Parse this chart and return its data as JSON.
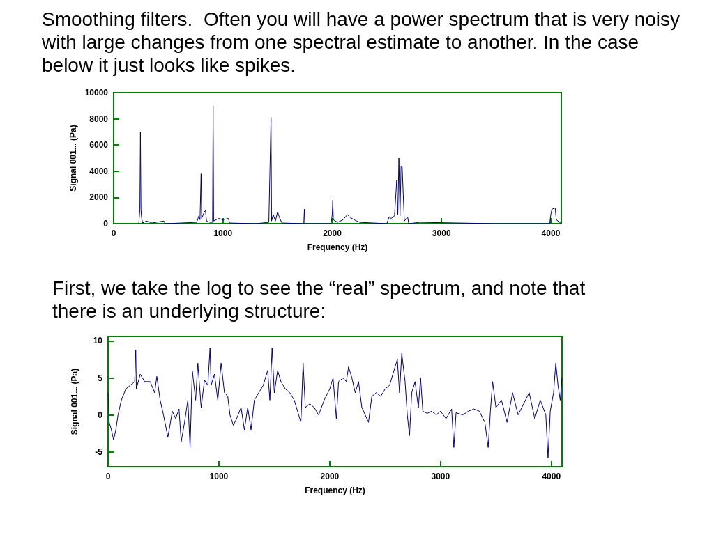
{
  "chart_data": [
    {
      "type": "line",
      "title": "Smoothing filters.  Often you will have a power spectrum that is very noisy with large changes from one spectral estimate to another. In the case below it just looks like spikes.",
      "xlabel": "Frequency (Hz)",
      "ylabel": "Signal 001... (Pa)",
      "xlim": [
        0,
        4096
      ],
      "ylim": [
        0,
        10000
      ],
      "xticks": [
        0,
        1000,
        2000,
        3000,
        4000
      ],
      "yticks": [
        0,
        2000,
        4000,
        6000,
        8000,
        10000
      ],
      "grid": false,
      "marker": "none",
      "x": [
        230,
        240,
        245,
        250,
        255,
        265,
        300,
        350,
        460,
        470,
        760,
        780,
        790,
        800,
        805,
        830,
        840,
        850,
        880,
        905,
        910,
        915,
        960,
        1000,
        1050,
        1060,
        1300,
        1420,
        1440,
        1445,
        1460,
        1480,
        1500,
        1520,
        1540,
        1740,
        1745,
        1750,
        1990,
        2000,
        2005,
        2010,
        2050,
        2100,
        2140,
        2160,
        2200,
        2250,
        2500,
        2520,
        2540,
        2570,
        2590,
        2600,
        2610,
        2620,
        2630,
        2640,
        2650,
        2660,
        2690,
        2700,
        2800,
        3500,
        3990,
        4000,
        4010,
        4040,
        4050,
        4096
      ],
      "series": [
        {
          "color": "#000080",
          "values": [
            0,
            1100,
            7000,
            1100,
            500,
            50,
            200,
            50,
            200,
            0,
            100,
            600,
            300,
            3800,
            400,
            900,
            1000,
            200,
            100,
            100,
            9000,
            200,
            400,
            300,
            400,
            50,
            0,
            100,
            8100,
            200,
            700,
            200,
            900,
            400,
            50,
            0,
            1100,
            0,
            0,
            700,
            1800,
            300,
            100,
            300,
            700,
            500,
            300,
            100,
            0,
            500,
            400,
            600,
            3300,
            700,
            5000,
            600,
            4400,
            4300,
            2200,
            200,
            500,
            0,
            100,
            0,
            0,
            700,
            1100,
            1200,
            300,
            0
          ]
        }
      ]
    },
    {
      "type": "line",
      "title": "First, we take the log to see the “real” spectrum, and note that there is an underlying structure:",
      "xlabel": "Frequency (Hz)",
      "ylabel": "Signal 001... (Pa)",
      "xlim": [
        0,
        4096
      ],
      "ylim": [
        -7,
        10.6
      ],
      "xticks": [
        0,
        1000,
        2000,
        3000,
        4000
      ],
      "yticks": [
        -5,
        0,
        5,
        10
      ],
      "grid": false,
      "marker": "none",
      "x": [
        0,
        10,
        30,
        50,
        70,
        90,
        120,
        160,
        200,
        240,
        250,
        255,
        290,
        330,
        380,
        420,
        440,
        470,
        500,
        540,
        580,
        610,
        640,
        660,
        690,
        720,
        740,
        760,
        790,
        810,
        840,
        870,
        900,
        920,
        930,
        960,
        990,
        1020,
        1050,
        1080,
        1100,
        1130,
        1160,
        1200,
        1230,
        1260,
        1290,
        1320,
        1360,
        1400,
        1440,
        1460,
        1480,
        1500,
        1530,
        1560,
        1600,
        1640,
        1680,
        1720,
        1740,
        1760,
        1780,
        1820,
        1860,
        1900,
        1950,
        2000,
        2030,
        2060,
        2080,
        2120,
        2150,
        2170,
        2200,
        2230,
        2260,
        2290,
        2320,
        2350,
        2380,
        2420,
        2460,
        2500,
        2540,
        2580,
        2610,
        2630,
        2650,
        2680,
        2700,
        2720,
        2740,
        2770,
        2800,
        2820,
        2840,
        2880,
        2920,
        2960,
        3000,
        3050,
        3100,
        3120,
        3140,
        3200,
        3250,
        3300,
        3350,
        3400,
        3430,
        3450,
        3470,
        3500,
        3550,
        3600,
        3650,
        3700,
        3750,
        3800,
        3850,
        3900,
        3950,
        3970,
        3990,
        4020,
        4040,
        4060,
        4080,
        4096
      ],
      "series": [
        {
          "color": "#000080",
          "values": [
            3,
            -1,
            -2,
            -3.4,
            -2,
            0,
            2,
            3.5,
            4,
            4.5,
            8.8,
            3.5,
            5.5,
            4.5,
            4.5,
            3,
            5.2,
            2,
            0,
            -3,
            0.5,
            -0.5,
            0.8,
            -3.6,
            -1,
            2,
            -4.4,
            6,
            2,
            7,
            1,
            4.7,
            4,
            9,
            4,
            5.5,
            2,
            7,
            3,
            2.5,
            0,
            -1.4,
            -0.5,
            1,
            -2,
            1,
            -2,
            2,
            3,
            4,
            6,
            2,
            9,
            3,
            6,
            4.5,
            3.5,
            3,
            2,
            0,
            -1,
            7,
            1,
            1.5,
            1,
            0,
            2,
            3.5,
            5,
            -0.5,
            4.5,
            5,
            4.5,
            6.5,
            5,
            3,
            4.5,
            1,
            0,
            -1,
            2.5,
            3,
            2.5,
            3.5,
            4,
            6,
            7.5,
            3,
            8.3,
            4.5,
            0,
            -2.8,
            3,
            4.5,
            1,
            5,
            0.5,
            0.2,
            0.5,
            0,
            0.5,
            -0.5,
            0.8,
            -4.4,
            0.3,
            0,
            0.5,
            0.8,
            0.5,
            -1,
            -4.4,
            0.5,
            4.5,
            1,
            2,
            -1,
            3,
            0,
            1.5,
            3,
            -0.5,
            2,
            0,
            -5.8,
            0.5,
            3,
            7,
            4,
            2,
            5
          ]
        }
      ]
    }
  ]
}
